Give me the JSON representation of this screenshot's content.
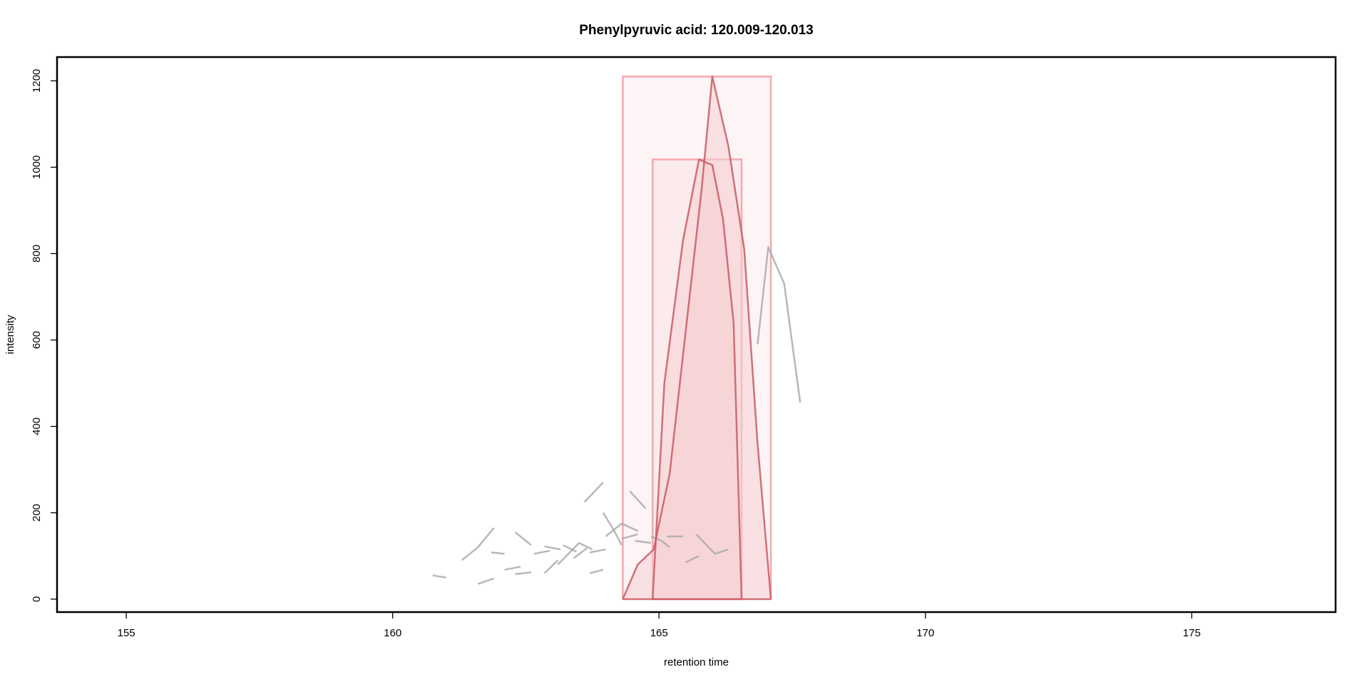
{
  "chart_data": {
    "type": "line",
    "title": "Phenylpyruvic acid: 120.009-120.013",
    "xlabel": "retention time",
    "ylabel": "intensity",
    "xlim": [
      153.7,
      177.7
    ],
    "ylim": [
      -30,
      1255
    ],
    "x_ticks": [
      155,
      160,
      165,
      170,
      175
    ],
    "y_ticks": [
      0,
      200,
      400,
      600,
      800,
      1000,
      1200
    ],
    "x_tick_labels": [
      "155",
      "160",
      "165",
      "170",
      "175"
    ],
    "y_tick_labels": [
      "0",
      "200",
      "400",
      "600",
      "800",
      "1000",
      "1200"
    ],
    "grid": false,
    "legend": "none",
    "colors": {
      "noise": "#a6a6a6",
      "peak_line": "#c85a64",
      "peak_fill": "#f6cfd2",
      "peak_box": "#f4a9b0",
      "axis": "#000000"
    },
    "peak_boxes": [
      {
        "rtmin": 164.32,
        "rtmax": 167.1,
        "maxo": 1210
      },
      {
        "rtmin": 164.88,
        "rtmax": 166.55,
        "maxo": 1018
      }
    ],
    "peaks": [
      {
        "points": [
          [
            164.32,
            0
          ],
          [
            164.6,
            80
          ],
          [
            164.9,
            115
          ],
          [
            165.2,
            290
          ],
          [
            165.5,
            620
          ],
          [
            165.8,
            950
          ],
          [
            166.0,
            1210
          ],
          [
            166.3,
            1050
          ],
          [
            166.6,
            810
          ],
          [
            166.85,
            360
          ],
          [
            167.1,
            0
          ]
        ]
      },
      {
        "points": [
          [
            164.88,
            0
          ],
          [
            165.1,
            500
          ],
          [
            165.45,
            830
          ],
          [
            165.75,
            1018
          ],
          [
            166.0,
            1005
          ],
          [
            166.2,
            880
          ],
          [
            166.4,
            640
          ],
          [
            166.55,
            0
          ]
        ]
      }
    ],
    "noise_segments": [
      {
        "points": [
          [
            160.75,
            55
          ],
          [
            161.0,
            50
          ]
        ]
      },
      {
        "points": [
          [
            161.3,
            90
          ],
          [
            161.6,
            120
          ],
          [
            161.9,
            165
          ]
        ]
      },
      {
        "points": [
          [
            161.6,
            35
          ],
          [
            161.9,
            48
          ]
        ]
      },
      {
        "points": [
          [
            161.85,
            108
          ],
          [
            162.1,
            105
          ]
        ]
      },
      {
        "points": [
          [
            162.1,
            68
          ],
          [
            162.4,
            75
          ]
        ]
      },
      {
        "points": [
          [
            162.3,
            155
          ],
          [
            162.6,
            125
          ]
        ]
      },
      {
        "points": [
          [
            162.3,
            58
          ],
          [
            162.6,
            62
          ]
        ]
      },
      {
        "points": [
          [
            162.65,
            105
          ],
          [
            162.95,
            112
          ]
        ]
      },
      {
        "points": [
          [
            162.85,
            122
          ],
          [
            163.15,
            115
          ]
        ]
      },
      {
        "points": [
          [
            162.85,
            60
          ],
          [
            163.1,
            90
          ]
        ]
      },
      {
        "points": [
          [
            163.1,
            80
          ],
          [
            163.3,
            105
          ],
          [
            163.5,
            130
          ],
          [
            163.75,
            115
          ]
        ]
      },
      {
        "points": [
          [
            163.2,
            125
          ],
          [
            163.45,
            110
          ]
        ]
      },
      {
        "points": [
          [
            163.4,
            95
          ],
          [
            163.65,
            118
          ]
        ]
      },
      {
        "points": [
          [
            163.6,
            225
          ],
          [
            163.95,
            270
          ]
        ]
      },
      {
        "points": [
          [
            163.7,
            108
          ],
          [
            164.0,
            115
          ]
        ]
      },
      {
        "points": [
          [
            163.7,
            60
          ],
          [
            163.95,
            68
          ]
        ]
      },
      {
        "points": [
          [
            163.95,
            200
          ],
          [
            164.15,
            160
          ],
          [
            164.3,
            125
          ]
        ]
      },
      {
        "points": [
          [
            164.0,
            145
          ],
          [
            164.3,
            175
          ],
          [
            164.6,
            158
          ]
        ]
      },
      {
        "points": [
          [
            164.3,
            140
          ],
          [
            164.6,
            150
          ]
        ]
      },
      {
        "points": [
          [
            164.45,
            250
          ],
          [
            164.75,
            210
          ]
        ]
      },
      {
        "points": [
          [
            164.55,
            135
          ],
          [
            164.85,
            130
          ]
        ]
      },
      {
        "points": [
          [
            164.85,
            145
          ],
          [
            165.05,
            135
          ],
          [
            165.2,
            120
          ]
        ]
      },
      {
        "points": [
          [
            165.15,
            145
          ],
          [
            165.45,
            145
          ]
        ]
      },
      {
        "points": [
          [
            165.5,
            85
          ],
          [
            165.75,
            100
          ]
        ]
      },
      {
        "points": [
          [
            165.7,
            150
          ],
          [
            166.05,
            105
          ],
          [
            166.3,
            115
          ]
        ]
      },
      {
        "points": [
          [
            166.85,
            590
          ],
          [
            167.05,
            815
          ],
          [
            167.35,
            730
          ],
          [
            167.65,
            455
          ]
        ]
      }
    ]
  }
}
